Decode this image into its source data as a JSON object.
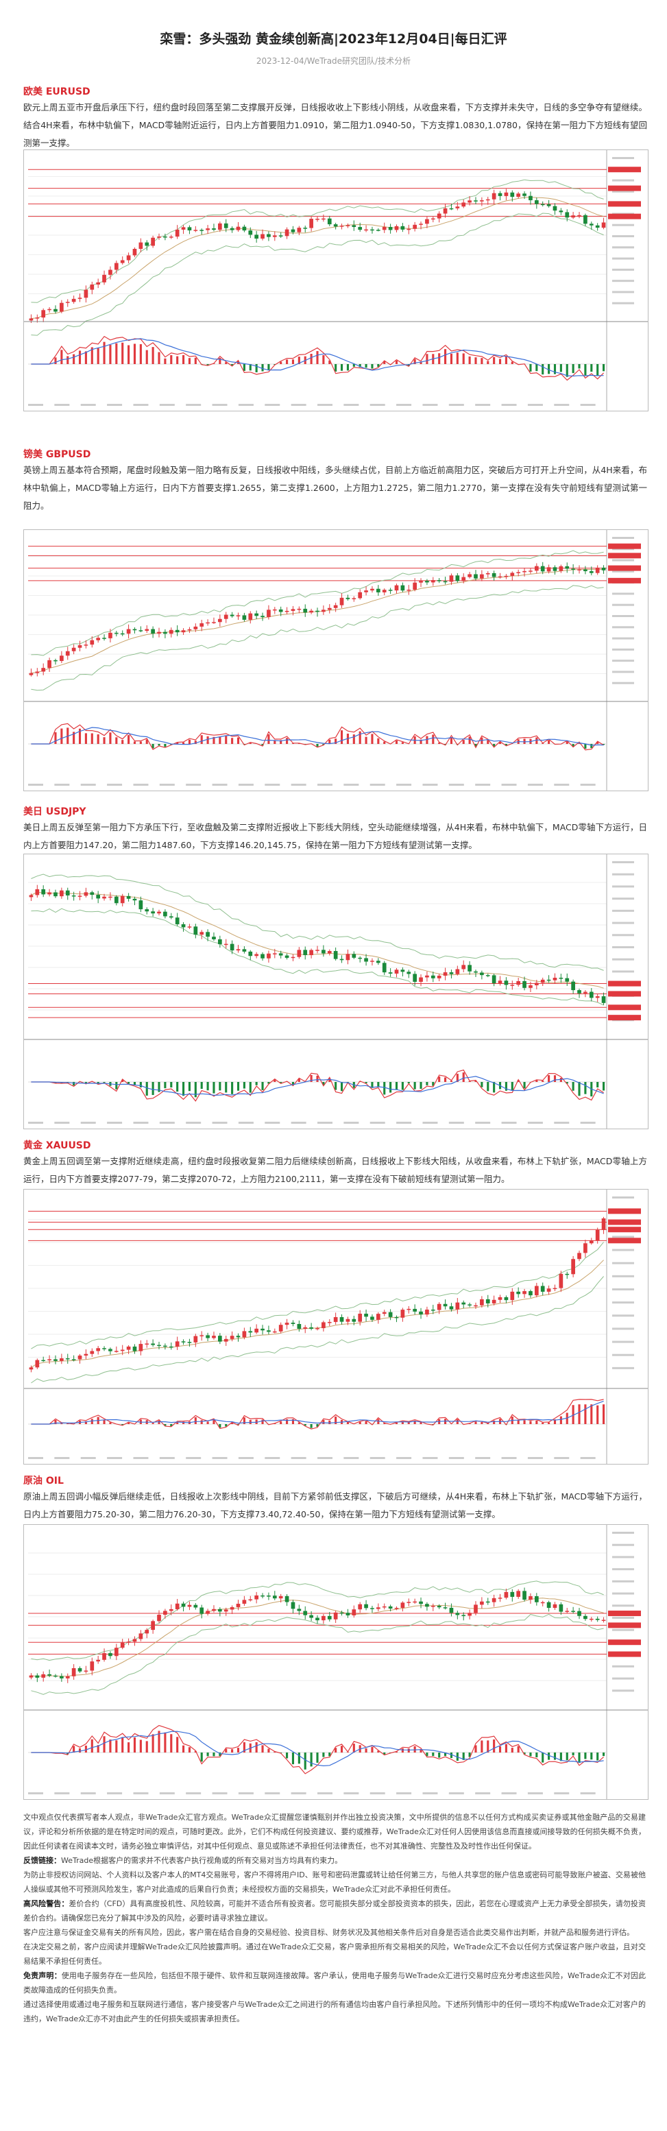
{
  "header": {
    "title": "栾雪：多头强劲 黄金续创新高|2023年12月04日|每日汇评",
    "meta": "2023-12-04/WeTrade研究团队/技术分析"
  },
  "sections": [
    {
      "id": "eurusd",
      "name": "欧美 EURUSD",
      "text": "欧元上周五亚市开盘后承压下行，纽约盘时段回落至第二支撑展开反弹，日线报收收上下影线小阴线，从收盘来看，下方支撑并未失守，日线的多空争夺有望继续。结合4H来看，布林中轨偏下，MACD零轴附近运行，日内上方首要阻力1.0910，第二阻力1.0940-50，下方支撑1.0830,1.0780，保持在第一阻力下方短线有望回测第一支撑。"
    },
    {
      "id": "gbpusd",
      "name": "镑美 GBPUSD",
      "text": "英镑上周五基本符合预期，尾盘时段触及第一阻力略有反复，日线报收中阳线，多头继续占优，目前上方临近前高阻力区，突破后方可打开上升空间，从4H来看，布林中轨偏上，MACD零轴上方运行，日内下方首要支撑1.2655，第二支撑1.2600，上方阻力1.2725，第二阻力1.2770，第一支撑在没有失守前短线有望测试第一阻力。"
    },
    {
      "id": "usdjpy",
      "name": "美日 USDJPY",
      "text": "美日上周五反弹至第一阻力下方承压下行，至收盘触及第二支撑附近报收上下影线大阴线，空头动能继续增强，从4H来看，布林中轨偏下，MACD零轴下方运行，日内上方首要阻力147.20，第二阻力1487.60，下方支撑146.20,145.75，保持在第一阻力下方短线有望测试第一支撑。"
    },
    {
      "id": "xauusd",
      "name": "黄金 XAUUSD",
      "text": "黄金上周五回调至第一支撑附近继续走高，纽约盘时段报收复第二阻力后继续续创新高，日线报收上下影线大阳线，从收盘来看，布林上下轨扩张，MACD零轴上方运行，日内下方首要支撑2077-79，第二支撑2070-72，上方阻力2100,2111，第一支撑在没有下破前短线有望测试第一阻力。"
    },
    {
      "id": "oil",
      "name": "原油 OIL",
      "text": "原油上周五回调小幅反弹后继续走低，日线报收上次影线中阴线，目前下方紧邻前低支撑区，下破后方可继续，从4H来看，布林上下轨扩张，MACD零轴下方运行，日内上方首要阻力75.20-30，第二阻力76.20-30，下方支撑73.40,72.40-50，保持在第一阻力下方短线有望测试第一支撑。"
    }
  ],
  "disclaimer": [
    {
      "label": "",
      "text": "文中观点仅代表撰写者本人观点，非WeTrade众汇官方观点。WeTrade众汇提醒您谨慎甄别并作出独立投资决策，文中所提供的信息不以任何方式构成买卖证券或其他金融产品的交易建议，评论和分析所依据的是在特定时间的观点，可随时更改。此外，它们不构成任何投资建议、要约或推荐，WeTrade众汇对任何人因使用该信息而直接或间接导致的任何损失概不负责，因此任何读者在阅读本文时，请务必独立审慎评估，对其中任何观点、意见或陈述不承担任何法律责任，也不对其准确性、完整性及及时性作出任何保证。"
    },
    {
      "label": "反馈链接：",
      "text": "WeTrade根据客户的需求并不代表客户执行视角或的所有交易对当方均具有约束力。"
    },
    {
      "label": "",
      "text": "为防止非授权访问网站、个人资料以及客户本人的MT4交易账号，客户不得将用户ID、账号和密码泄露或转让给任何第三方，与他人共享您的账户信息或密码可能导致账户被盗、交易被他人操纵或其他不可预测风险发生，客户对此造成的后果自行负责；未经授权方面的交易损失，WeTrade众汇对此不承担任何责任。"
    },
    {
      "label": "高风险警告：",
      "text": "差价合约（CFD）具有高度投机性、风险较高，可能并不适合所有投资者。您可能损失部分或全部投资资本的损失，因此，若您在心理或资产上无力承受全部损失，请勿投资差价合约。请确保您已充分了解其中涉及的风险，必要时请寻求独立建议。"
    },
    {
      "label": "",
      "text": "客户应注意与保证金交易有关的所有风险，因此，客户需在结合自身的交易经验、投资目标、财务状况及其他相关条件后对自身是否适合此类交易作出判断，并就产品和服务进行评估。"
    },
    {
      "label": "",
      "text": "在决定交易之前，客户应阅读并理解WeTrade众汇风险披露声明。通过在WeTrade众汇交易，客户需承担所有交易相关的风险，WeTrade众汇不会以任何方式保证客户账户收益，且对交易结果不承担任何责任。"
    },
    {
      "label": "免责声明：",
      "text": "使用电子服务存在一些风险，包括但不限于硬件、软件和互联网连接故障。客户承认，使用电子服务与WeTrade众汇进行交易时应充分考虑这些风险，WeTrade众汇不对因此类故障造成的任何损失负责。"
    },
    {
      "label": "",
      "text": "通过选择使用或通过电子服务和互联网进行通信，客户接受客户与WeTrade众汇之间进行的所有通信均由客户自行承担风险。下述所列情形中的任何一项均不构成WeTrade众汇对客户的违约，WeTrade众汇亦不对由此产生的任何损失或损害承担责任。"
    }
  ]
}
